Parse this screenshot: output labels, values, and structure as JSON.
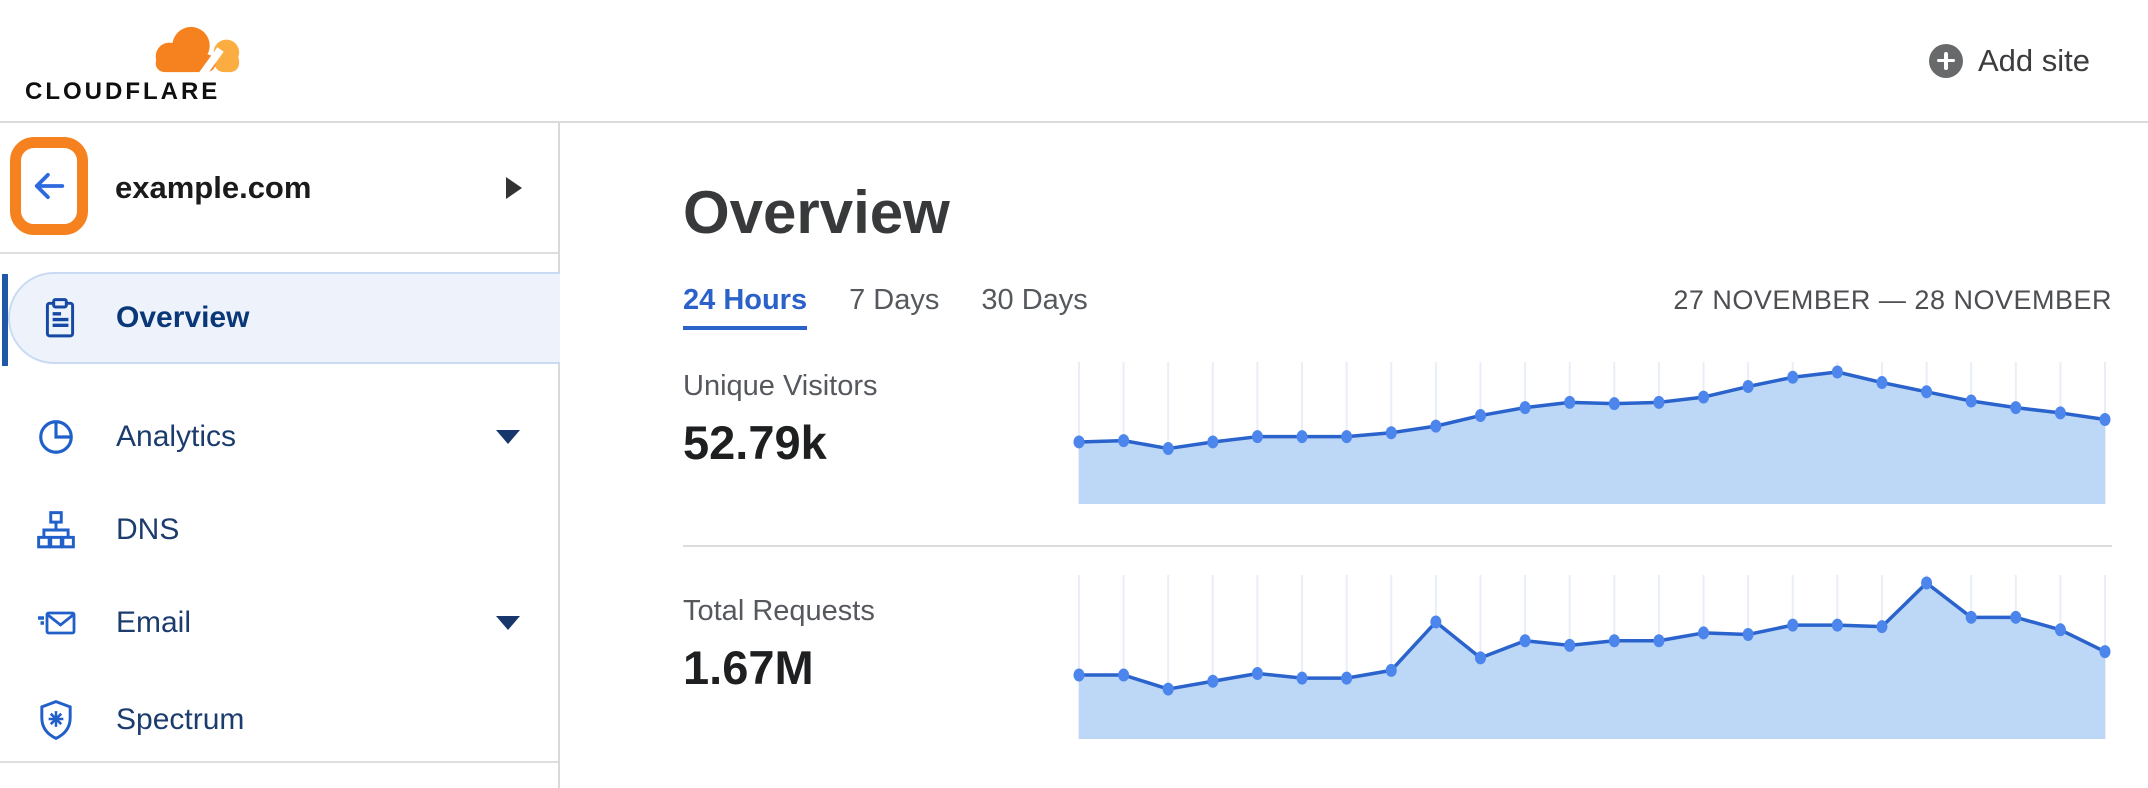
{
  "colors": {
    "brand_orange": "#f6821f",
    "logo_light_orange": "#fbad41",
    "chart_line": "#2b63cc",
    "chart_dot": "#4c86ec",
    "chart_area": "#bdd7f7",
    "chart_grid": "#e9eef7",
    "link_blue": "#2b62c9",
    "selected_bar": "#2157a7",
    "annotation_orange": "#f6821f",
    "back_arrow_blue": "#2d6ae0"
  },
  "header": {
    "logo_text": "CLOUDFLARE",
    "add_site_label": "Add site"
  },
  "sidebar": {
    "zone_name": "example.com",
    "items": [
      {
        "label": "Overview",
        "icon": "clipboard-icon",
        "selected": true,
        "has_submenu": false
      },
      {
        "label": "Analytics",
        "icon": "pie-chart-icon",
        "selected": false,
        "has_submenu": true
      },
      {
        "label": "DNS",
        "icon": "hierarchy-icon",
        "selected": false,
        "has_submenu": false
      },
      {
        "label": "Email",
        "icon": "envelope-icon",
        "selected": false,
        "has_submenu": true
      },
      {
        "label": "Spectrum",
        "icon": "shield-icon",
        "selected": false,
        "has_submenu": false
      }
    ]
  },
  "main": {
    "title": "Overview",
    "tabs": [
      {
        "label": "24 Hours",
        "active": true
      },
      {
        "label": "7 Days",
        "active": false
      },
      {
        "label": "30 Days",
        "active": false
      }
    ],
    "date_range": "27 NOVEMBER — 28 NOVEMBER",
    "metrics": [
      {
        "label": "Unique Visitors",
        "value": "52.79k"
      },
      {
        "label": "Total Requests",
        "value": "1.67M"
      }
    ]
  },
  "chart_data": [
    {
      "type": "area",
      "title": "Unique Visitors",
      "total_label": "52.79k",
      "xlabel": "hour (27 November – 28 November)",
      "ylabel": "unique visitors (relative height, no y-axis shown)",
      "x": [
        0,
        1,
        2,
        3,
        4,
        5,
        6,
        7,
        8,
        9,
        10,
        11,
        12,
        13,
        14,
        15,
        16,
        17,
        18,
        19,
        20,
        21,
        22,
        23
      ],
      "values": [
        47,
        48,
        42,
        47,
        51,
        51,
        51,
        54,
        59,
        67,
        73,
        77,
        76,
        77,
        81,
        89,
        96,
        100,
        92,
        85,
        78,
        73,
        69,
        64
      ],
      "ylim": [
        0,
        100
      ],
      "grid": "vertical gridline at each point",
      "legend": "none"
    },
    {
      "type": "area",
      "title": "Total Requests",
      "total_label": "1.67M",
      "xlabel": "hour (27 November – 28 November)",
      "ylabel": "requests (relative height, no y-axis shown)",
      "x": [
        0,
        1,
        2,
        3,
        4,
        5,
        6,
        7,
        8,
        9,
        10,
        11,
        12,
        13,
        14,
        15,
        16,
        17,
        18,
        19,
        20,
        21,
        22,
        23
      ],
      "values": [
        41,
        41,
        32,
        37,
        42,
        39,
        39,
        44,
        75,
        52,
        63,
        60,
        63,
        63,
        68,
        67,
        73,
        73,
        72,
        100,
        78,
        78,
        70,
        56
      ],
      "ylim": [
        0,
        100
      ],
      "grid": "vertical gridline at each point",
      "legend": "none"
    }
  ]
}
